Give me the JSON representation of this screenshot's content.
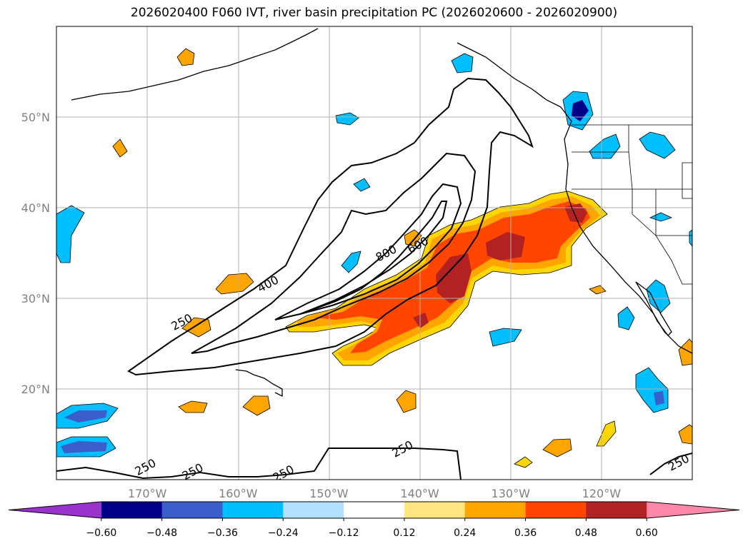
{
  "chart_data": {
    "type": "contour",
    "title": "2026020400 F060 IVT, river basin precipitation PC (2026020600 - 2026020900)",
    "xlim": [
      -180,
      -110
    ],
    "ylim": [
      10,
      60
    ],
    "grid": true,
    "x_ticks": [
      {
        "value": -170,
        "label": "170°W"
      },
      {
        "value": -160,
        "label": "160°W"
      },
      {
        "value": -150,
        "label": "150°W"
      },
      {
        "value": -140,
        "label": "140°W"
      },
      {
        "value": -130,
        "label": "130°W"
      },
      {
        "value": -120,
        "label": "120°W"
      }
    ],
    "y_ticks": [
      {
        "value": 20,
        "label": "20°N"
      },
      {
        "value": 30,
        "label": "30°N"
      },
      {
        "value": 40,
        "label": "40°N"
      },
      {
        "value": 50,
        "label": "50°N"
      }
    ],
    "ivt_contour_labels": [
      {
        "text": "250",
        "lon": -166,
        "lat": 27
      },
      {
        "text": "400",
        "lon": -156.5,
        "lat": 31.2
      },
      {
        "text": "800",
        "lon": -143.5,
        "lat": 34.6
      },
      {
        "text": "600",
        "lon": -140,
        "lat": 35.5
      },
      {
        "text": "250",
        "lon": -170,
        "lat": 11
      },
      {
        "text": "250",
        "lon": -164.8,
        "lat": 10.5
      },
      {
        "text": "250",
        "lon": -154.8,
        "lat": 10.3
      },
      {
        "text": "250",
        "lon": -141.7,
        "lat": 13
      },
      {
        "text": "250",
        "lon": -111.3,
        "lat": 11.5
      }
    ],
    "colorbar": {
      "levels": [
        -0.6,
        -0.48,
        -0.36,
        -0.24,
        -0.12,
        0.12,
        0.24,
        0.36,
        0.48,
        0.6
      ],
      "labels": [
        "−0.60",
        "−0.48",
        "−0.36",
        "−0.24",
        "−0.12",
        "0.12",
        "0.24",
        "0.36",
        "0.48",
        "0.60"
      ],
      "colors": [
        "#9933cc",
        "#00008b",
        "#3a5fcd",
        "#00bfff",
        "#b0e2ff",
        "#ffffff",
        "#ffe680",
        "#ffa500",
        "#ff4500",
        "#b22222",
        "#ff88aa"
      ],
      "extend": "both"
    }
  }
}
